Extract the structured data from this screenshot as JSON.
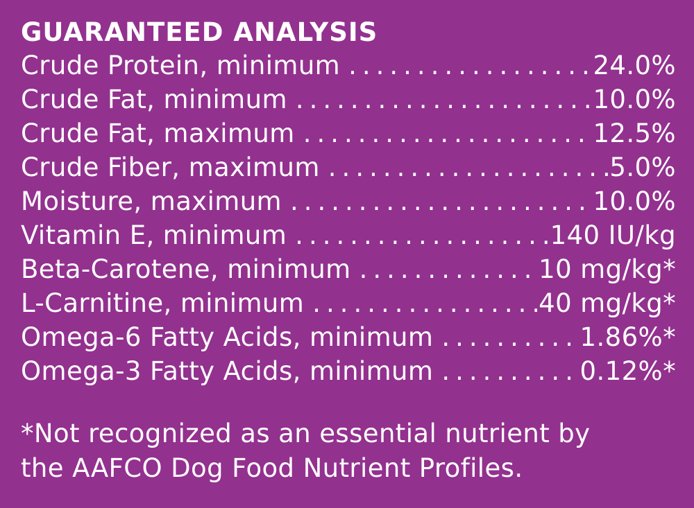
{
  "panel": {
    "background_color": "#93318f",
    "text_color": "#ffffff"
  },
  "heading": "GUARANTEED ANALYSIS",
  "rows": [
    {
      "label": "Crude Protein, minimum",
      "value": "24.0%"
    },
    {
      "label": "Crude Fat, minimum",
      "value": "10.0%"
    },
    {
      "label": "Crude Fat, maximum",
      "value": "12.5%"
    },
    {
      "label": "Crude Fiber, maximum",
      "value": "5.0%"
    },
    {
      "label": "Moisture, maximum",
      "value": "10.0%"
    },
    {
      "label": "Vitamin E, minimum",
      "value": "140 IU/kg"
    },
    {
      "label": "Beta-Carotene, minimum",
      "value": "10 mg/kg*"
    },
    {
      "label": "L-Carnitine, minimum",
      "value": "40 mg/kg*"
    },
    {
      "label": "Omega-6 Fatty Acids, minimum",
      "value": "1.86%*"
    },
    {
      "label": "Omega-3 Fatty Acids, minimum",
      "value": "0.12%*"
    }
  ],
  "footnote": {
    "line1": "*Not recognized as an essential nutrient by",
    "line2": "the AAFCO Dog Food Nutrient Profiles."
  }
}
